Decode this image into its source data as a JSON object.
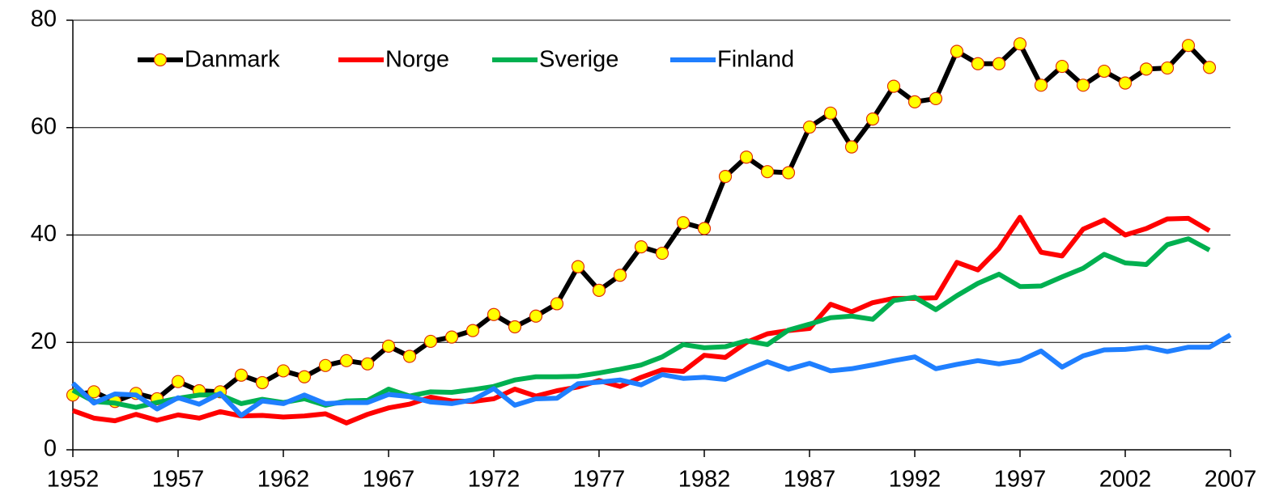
{
  "chart_data": {
    "type": "line",
    "x": [
      1952,
      1953,
      1954,
      1955,
      1956,
      1957,
      1958,
      1959,
      1960,
      1961,
      1962,
      1963,
      1964,
      1965,
      1966,
      1967,
      1968,
      1969,
      1970,
      1971,
      1972,
      1973,
      1974,
      1975,
      1976,
      1977,
      1978,
      1979,
      1980,
      1981,
      1982,
      1983,
      1984,
      1985,
      1986,
      1987,
      1988,
      1989,
      1990,
      1991,
      1992,
      1993,
      1994,
      1995,
      1996,
      1997,
      1998,
      1999,
      2000,
      2001,
      2002,
      2003,
      2004,
      2005,
      2006,
      2007
    ],
    "series": [
      {
        "name": "Danmark",
        "color": "#000000",
        "marker_color": "#ffff00",
        "values": [
          10.2,
          10.8,
          9.0,
          10.5,
          9.5,
          12.7,
          11.0,
          10.8,
          13.9,
          12.5,
          14.7,
          13.6,
          15.7,
          16.6,
          16.0,
          19.3,
          17.4,
          20.2,
          21.0,
          22.2,
          25.2,
          22.9,
          24.9,
          27.2,
          34.1,
          29.7,
          32.5,
          37.8,
          36.6,
          42.3,
          41.2,
          50.9,
          54.5,
          51.8,
          51.6,
          60.1,
          62.7,
          56.4,
          61.6,
          67.7,
          64.8,
          65.4,
          74.2,
          71.9,
          71.9,
          75.6,
          67.9,
          71.4,
          67.9,
          70.5,
          68.3,
          70.9,
          71.1,
          75.3,
          71.2,
          null
        ]
      },
      {
        "name": "Norge",
        "color": "#ff0000",
        "values": [
          7.3,
          5.9,
          5.4,
          6.6,
          5.5,
          6.5,
          5.9,
          7.1,
          6.3,
          6.4,
          6.1,
          6.3,
          6.7,
          5.0,
          6.6,
          7.8,
          8.5,
          9.8,
          9.1,
          9.0,
          9.5,
          11.3,
          10.0,
          11.0,
          11.7,
          12.9,
          11.8,
          13.5,
          14.9,
          14.6,
          17.6,
          17.2,
          20.0,
          21.6,
          22.2,
          22.6,
          27.1,
          25.7,
          27.4,
          28.2,
          28.2,
          28.3,
          34.9,
          33.5,
          37.5,
          43.3,
          36.8,
          36.1,
          41.1,
          42.8,
          40.0,
          41.2,
          43.0,
          43.1,
          40.8,
          null
        ]
      },
      {
        "name": "Sverige",
        "color": "#00b050",
        "values": [
          11.1,
          9.0,
          8.7,
          7.9,
          8.8,
          9.6,
          10.2,
          10.2,
          8.6,
          9.4,
          8.8,
          9.5,
          8.3,
          9.1,
          9.2,
          11.3,
          10.0,
          10.8,
          10.7,
          11.2,
          11.8,
          13.0,
          13.6,
          13.6,
          13.7,
          14.3,
          15.0,
          15.8,
          17.3,
          19.6,
          19.0,
          19.2,
          20.3,
          19.6,
          22.3,
          23.4,
          24.6,
          24.9,
          24.3,
          27.8,
          28.4,
          26.1,
          28.7,
          31.0,
          32.7,
          30.4,
          30.5,
          32.2,
          33.8,
          36.4,
          34.8,
          34.5,
          38.2,
          39.3,
          37.2,
          null
        ]
      },
      {
        "name": "Finland",
        "color": "#1f7fff",
        "values": [
          12.4,
          8.7,
          10.4,
          10.2,
          7.6,
          9.7,
          8.5,
          10.5,
          6.4,
          9.1,
          8.6,
          10.2,
          8.6,
          8.8,
          8.8,
          10.3,
          9.9,
          8.9,
          8.6,
          9.3,
          11.4,
          8.3,
          9.5,
          9.6,
          12.3,
          12.6,
          13.0,
          12.1,
          14.0,
          13.3,
          13.5,
          13.1,
          14.8,
          16.4,
          15.0,
          16.1,
          14.7,
          15.1,
          15.8,
          16.6,
          17.3,
          15.1,
          15.9,
          16.6,
          16.0,
          16.6,
          18.4,
          15.4,
          17.5,
          18.6,
          18.7,
          19.1,
          18.3,
          19.1,
          19.1,
          21.4
        ]
      }
    ],
    "xlim": [
      1952,
      2007
    ],
    "xticks": [
      1952,
      1957,
      1962,
      1967,
      1972,
      1977,
      1982,
      1987,
      1992,
      1997,
      2002,
      2007
    ],
    "ylim": [
      0,
      80
    ],
    "yticks": [
      0,
      20,
      40,
      60,
      80
    ],
    "grid": true,
    "legend": "top-left"
  }
}
